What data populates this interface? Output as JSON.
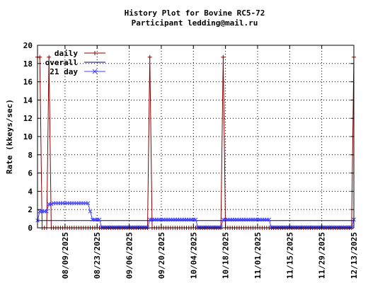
{
  "chart_data": {
    "type": "line",
    "title": "History Plot for Bovine RC5-72",
    "subtitle": "Participant ledding@mail.ru",
    "ylabel": "Rate (kkeys/sec)",
    "xlabel": "",
    "ylim": [
      0,
      20
    ],
    "yticks": [
      0,
      2,
      4,
      6,
      8,
      10,
      12,
      14,
      16,
      18,
      20
    ],
    "xlim": [
      "2025-07-28",
      "2025-12-13"
    ],
    "xticks": [
      "08/09/2025",
      "08/23/2025",
      "09/06/2025",
      "09/20/2025",
      "10/04/2025",
      "10/18/2025",
      "11/01/2025",
      "11/15/2025",
      "11/29/2025",
      "12/13/2025"
    ],
    "grid": true,
    "legend_position": "top-left",
    "series": [
      {
        "name": "daily",
        "color": "#8b0000",
        "marker": "plus",
        "values_note": "",
        "points": [
          [
            "2025-07-28",
            18.7
          ],
          [
            "2025-07-29",
            18.7
          ],
          [
            "2025-07-30",
            0
          ],
          [
            "2025-07-31",
            0
          ],
          [
            "2025-08-01",
            0
          ],
          [
            "2025-08-02",
            18.7
          ],
          [
            "2025-08-03",
            0
          ],
          [
            "2025-08-04",
            0
          ],
          [
            "2025-08-05",
            0
          ],
          [
            "2025-08-06",
            0
          ],
          [
            "2025-08-07",
            0
          ],
          [
            "2025-08-08",
            0
          ],
          [
            "2025-08-09",
            0
          ],
          [
            "2025-08-10",
            0
          ],
          [
            "2025-08-11",
            0
          ],
          [
            "2025-08-12",
            0
          ],
          [
            "2025-08-13",
            0
          ],
          [
            "2025-08-14",
            0
          ],
          [
            "2025-08-15",
            0
          ],
          [
            "2025-08-16",
            0
          ],
          [
            "2025-08-17",
            0
          ],
          [
            "2025-08-18",
            0
          ],
          [
            "2025-08-19",
            0
          ],
          [
            "2025-08-20",
            0
          ],
          [
            "2025-08-21",
            0
          ],
          [
            "2025-08-22",
            0
          ],
          [
            "2025-08-23",
            0
          ],
          [
            "2025-08-24",
            0
          ],
          [
            "2025-08-25",
            0
          ],
          [
            "2025-08-26",
            0
          ],
          [
            "2025-08-27",
            0
          ],
          [
            "2025-08-28",
            0
          ],
          [
            "2025-08-29",
            0
          ],
          [
            "2025-08-30",
            0
          ],
          [
            "2025-08-31",
            0
          ],
          [
            "2025-09-01",
            0
          ],
          [
            "2025-09-02",
            0
          ],
          [
            "2025-09-03",
            0
          ],
          [
            "2025-09-04",
            0
          ],
          [
            "2025-09-05",
            0
          ],
          [
            "2025-09-06",
            0
          ],
          [
            "2025-09-07",
            0
          ],
          [
            "2025-09-08",
            0
          ],
          [
            "2025-09-09",
            0
          ],
          [
            "2025-09-10",
            0
          ],
          [
            "2025-09-11",
            0
          ],
          [
            "2025-09-12",
            0
          ],
          [
            "2025-09-13",
            0
          ],
          [
            "2025-09-14",
            0
          ],
          [
            "2025-09-15",
            18.7
          ],
          [
            "2025-09-16",
            0
          ],
          [
            "2025-09-17",
            0
          ],
          [
            "2025-09-18",
            0
          ],
          [
            "2025-09-19",
            0
          ],
          [
            "2025-09-20",
            0
          ],
          [
            "2025-09-21",
            0
          ],
          [
            "2025-09-22",
            0
          ],
          [
            "2025-09-23",
            0
          ],
          [
            "2025-09-24",
            0
          ],
          [
            "2025-09-25",
            0
          ],
          [
            "2025-09-26",
            0
          ],
          [
            "2025-09-27",
            0
          ],
          [
            "2025-09-28",
            0
          ],
          [
            "2025-09-29",
            0
          ],
          [
            "2025-09-30",
            0
          ],
          [
            "2025-10-01",
            0
          ],
          [
            "2025-10-02",
            0
          ],
          [
            "2025-10-03",
            0
          ],
          [
            "2025-10-04",
            0
          ],
          [
            "2025-10-05",
            0
          ],
          [
            "2025-10-06",
            0
          ],
          [
            "2025-10-07",
            0
          ],
          [
            "2025-10-08",
            0
          ],
          [
            "2025-10-09",
            0
          ],
          [
            "2025-10-10",
            0
          ],
          [
            "2025-10-11",
            0
          ],
          [
            "2025-10-12",
            0
          ],
          [
            "2025-10-13",
            0
          ],
          [
            "2025-10-14",
            0
          ],
          [
            "2025-10-15",
            0
          ],
          [
            "2025-10-16",
            0
          ],
          [
            "2025-10-17",
            18.7
          ],
          [
            "2025-10-18",
            0
          ],
          [
            "2025-10-19",
            0
          ],
          [
            "2025-10-20",
            0
          ],
          [
            "2025-10-21",
            0
          ],
          [
            "2025-10-22",
            0
          ],
          [
            "2025-10-23",
            0
          ],
          [
            "2025-10-24",
            0
          ],
          [
            "2025-10-25",
            0
          ],
          [
            "2025-10-26",
            0
          ],
          [
            "2025-10-27",
            0
          ],
          [
            "2025-10-28",
            0
          ],
          [
            "2025-10-29",
            0
          ],
          [
            "2025-10-30",
            0
          ],
          [
            "2025-10-31",
            0
          ],
          [
            "2025-11-01",
            0
          ],
          [
            "2025-11-02",
            0
          ],
          [
            "2025-11-03",
            0
          ],
          [
            "2025-11-04",
            0
          ],
          [
            "2025-11-05",
            0
          ],
          [
            "2025-11-06",
            0
          ],
          [
            "2025-11-07",
            0
          ],
          [
            "2025-11-08",
            0
          ],
          [
            "2025-11-09",
            0
          ],
          [
            "2025-11-10",
            0
          ],
          [
            "2025-11-11",
            0
          ],
          [
            "2025-11-12",
            0
          ],
          [
            "2025-11-13",
            0
          ],
          [
            "2025-11-14",
            0
          ],
          [
            "2025-11-15",
            0
          ],
          [
            "2025-11-16",
            0
          ],
          [
            "2025-11-17",
            0
          ],
          [
            "2025-11-18",
            0
          ],
          [
            "2025-11-19",
            0
          ],
          [
            "2025-11-20",
            0
          ],
          [
            "2025-11-21",
            0
          ],
          [
            "2025-11-22",
            0
          ],
          [
            "2025-11-23",
            0
          ],
          [
            "2025-11-24",
            0
          ],
          [
            "2025-11-25",
            0
          ],
          [
            "2025-11-26",
            0
          ],
          [
            "2025-11-27",
            0
          ],
          [
            "2025-11-28",
            0
          ],
          [
            "2025-11-29",
            0
          ],
          [
            "2025-11-30",
            0
          ],
          [
            "2025-12-01",
            0
          ],
          [
            "2025-12-02",
            0
          ],
          [
            "2025-12-03",
            0
          ],
          [
            "2025-12-04",
            0
          ],
          [
            "2025-12-05",
            0
          ],
          [
            "2025-12-06",
            0
          ],
          [
            "2025-12-07",
            0
          ],
          [
            "2025-12-08",
            0
          ],
          [
            "2025-12-09",
            0
          ],
          [
            "2025-12-10",
            0
          ],
          [
            "2025-12-11",
            0
          ],
          [
            "2025-12-12",
            0
          ],
          [
            "2025-12-13",
            18.7
          ]
        ]
      },
      {
        "name": "overall",
        "color": "#000080",
        "marker": "none",
        "points": [
          [
            "2025-07-28",
            0.8
          ],
          [
            "2025-12-13",
            0.8
          ]
        ]
      },
      {
        "name": "21 day",
        "color": "#4040ff",
        "marker": "cross",
        "points": [
          [
            "2025-07-28",
            0.8
          ],
          [
            "2025-07-29",
            1.8
          ],
          [
            "2025-07-30",
            1.8
          ],
          [
            "2025-07-31",
            1.8
          ],
          [
            "2025-08-01",
            1.8
          ],
          [
            "2025-08-02",
            2.6
          ],
          [
            "2025-08-03",
            2.6
          ],
          [
            "2025-08-04",
            2.7
          ],
          [
            "2025-08-05",
            2.7
          ],
          [
            "2025-08-06",
            2.7
          ],
          [
            "2025-08-07",
            2.7
          ],
          [
            "2025-08-08",
            2.7
          ],
          [
            "2025-08-09",
            2.7
          ],
          [
            "2025-08-10",
            2.7
          ],
          [
            "2025-08-11",
            2.7
          ],
          [
            "2025-08-12",
            2.7
          ],
          [
            "2025-08-13",
            2.7
          ],
          [
            "2025-08-14",
            2.7
          ],
          [
            "2025-08-15",
            2.7
          ],
          [
            "2025-08-16",
            2.7
          ],
          [
            "2025-08-17",
            2.7
          ],
          [
            "2025-08-18",
            2.7
          ],
          [
            "2025-08-19",
            2.7
          ],
          [
            "2025-08-20",
            1.8
          ],
          [
            "2025-08-21",
            0.9
          ],
          [
            "2025-08-22",
            0.9
          ],
          [
            "2025-08-23",
            0.9
          ],
          [
            "2025-08-24",
            0.9
          ],
          [
            "2025-08-25",
            0.05
          ],
          [
            "2025-08-26",
            0.05
          ],
          [
            "2025-08-27",
            0.05
          ],
          [
            "2025-08-28",
            0.05
          ],
          [
            "2025-08-29",
            0.05
          ],
          [
            "2025-08-30",
            0.05
          ],
          [
            "2025-08-31",
            0.05
          ],
          [
            "2025-09-01",
            0.05
          ],
          [
            "2025-09-02",
            0.05
          ],
          [
            "2025-09-03",
            0.05
          ],
          [
            "2025-09-04",
            0.05
          ],
          [
            "2025-09-05",
            0.05
          ],
          [
            "2025-09-06",
            0.05
          ],
          [
            "2025-09-07",
            0.05
          ],
          [
            "2025-09-08",
            0.05
          ],
          [
            "2025-09-09",
            0.05
          ],
          [
            "2025-09-10",
            0.05
          ],
          [
            "2025-09-11",
            0.05
          ],
          [
            "2025-09-12",
            0.05
          ],
          [
            "2025-09-13",
            0.05
          ],
          [
            "2025-09-14",
            0.05
          ],
          [
            "2025-09-15",
            0.9
          ],
          [
            "2025-09-16",
            0.9
          ],
          [
            "2025-09-17",
            0.9
          ],
          [
            "2025-09-18",
            0.9
          ],
          [
            "2025-09-19",
            0.9
          ],
          [
            "2025-09-20",
            0.9
          ],
          [
            "2025-09-21",
            0.9
          ],
          [
            "2025-09-22",
            0.9
          ],
          [
            "2025-09-23",
            0.9
          ],
          [
            "2025-09-24",
            0.9
          ],
          [
            "2025-09-25",
            0.9
          ],
          [
            "2025-09-26",
            0.9
          ],
          [
            "2025-09-27",
            0.9
          ],
          [
            "2025-09-28",
            0.9
          ],
          [
            "2025-09-29",
            0.9
          ],
          [
            "2025-09-30",
            0.9
          ],
          [
            "2025-10-01",
            0.9
          ],
          [
            "2025-10-02",
            0.9
          ],
          [
            "2025-10-03",
            0.9
          ],
          [
            "2025-10-04",
            0.9
          ],
          [
            "2025-10-05",
            0.9
          ],
          [
            "2025-10-06",
            0.05
          ],
          [
            "2025-10-07",
            0.05
          ],
          [
            "2025-10-08",
            0.05
          ],
          [
            "2025-10-09",
            0.05
          ],
          [
            "2025-10-10",
            0.05
          ],
          [
            "2025-10-11",
            0.05
          ],
          [
            "2025-10-12",
            0.05
          ],
          [
            "2025-10-13",
            0.05
          ],
          [
            "2025-10-14",
            0.05
          ],
          [
            "2025-10-15",
            0.05
          ],
          [
            "2025-10-16",
            0.05
          ],
          [
            "2025-10-17",
            0.9
          ],
          [
            "2025-10-18",
            0.9
          ],
          [
            "2025-10-19",
            0.9
          ],
          [
            "2025-10-20",
            0.9
          ],
          [
            "2025-10-21",
            0.9
          ],
          [
            "2025-10-22",
            0.9
          ],
          [
            "2025-10-23",
            0.9
          ],
          [
            "2025-10-24",
            0.9
          ],
          [
            "2025-10-25",
            0.9
          ],
          [
            "2025-10-26",
            0.9
          ],
          [
            "2025-10-27",
            0.9
          ],
          [
            "2025-10-28",
            0.9
          ],
          [
            "2025-10-29",
            0.9
          ],
          [
            "2025-10-30",
            0.9
          ],
          [
            "2025-10-31",
            0.9
          ],
          [
            "2025-11-01",
            0.9
          ],
          [
            "2025-11-02",
            0.9
          ],
          [
            "2025-11-03",
            0.9
          ],
          [
            "2025-11-04",
            0.9
          ],
          [
            "2025-11-05",
            0.9
          ],
          [
            "2025-11-06",
            0.9
          ],
          [
            "2025-11-07",
            0.05
          ],
          [
            "2025-11-08",
            0.05
          ],
          [
            "2025-11-09",
            0.05
          ],
          [
            "2025-11-10",
            0.05
          ],
          [
            "2025-11-11",
            0.05
          ],
          [
            "2025-11-12",
            0.05
          ],
          [
            "2025-11-13",
            0.05
          ],
          [
            "2025-11-14",
            0.05
          ],
          [
            "2025-11-15",
            0.05
          ],
          [
            "2025-11-16",
            0.05
          ],
          [
            "2025-11-17",
            0.05
          ],
          [
            "2025-11-18",
            0.05
          ],
          [
            "2025-11-19",
            0.05
          ],
          [
            "2025-11-20",
            0.05
          ],
          [
            "2025-11-21",
            0.05
          ],
          [
            "2025-11-22",
            0.05
          ],
          [
            "2025-11-23",
            0.05
          ],
          [
            "2025-11-24",
            0.05
          ],
          [
            "2025-11-25",
            0.05
          ],
          [
            "2025-11-26",
            0.05
          ],
          [
            "2025-11-27",
            0.05
          ],
          [
            "2025-11-28",
            0.05
          ],
          [
            "2025-11-29",
            0.05
          ],
          [
            "2025-11-30",
            0.05
          ],
          [
            "2025-12-01",
            0.05
          ],
          [
            "2025-12-02",
            0.05
          ],
          [
            "2025-12-03",
            0.05
          ],
          [
            "2025-12-04",
            0.05
          ],
          [
            "2025-12-05",
            0.05
          ],
          [
            "2025-12-06",
            0.05
          ],
          [
            "2025-12-07",
            0.05
          ],
          [
            "2025-12-08",
            0.05
          ],
          [
            "2025-12-09",
            0.05
          ],
          [
            "2025-12-10",
            0.05
          ],
          [
            "2025-12-11",
            0.05
          ],
          [
            "2025-12-12",
            0.05
          ],
          [
            "2025-12-13",
            0.9
          ]
        ]
      }
    ]
  }
}
